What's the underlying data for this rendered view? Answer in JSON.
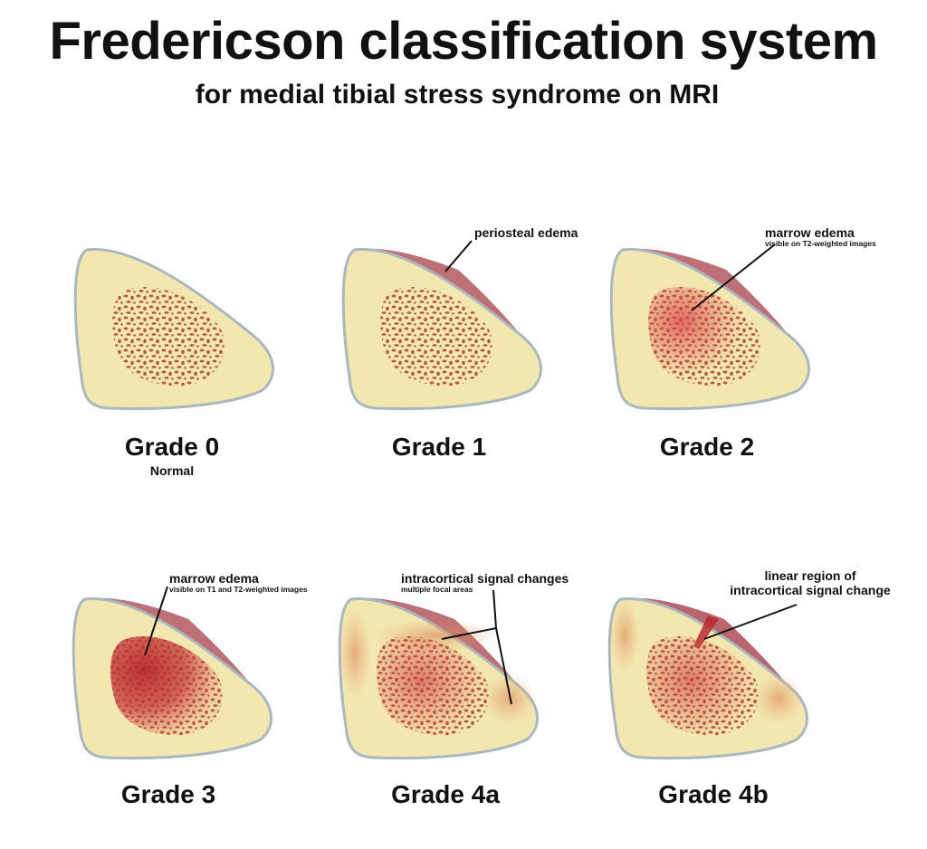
{
  "title": "Fredericson classification system",
  "subtitle": "for medial tibial stress syndrome on MRI",
  "colors": {
    "bone_fill": "#f3e7b0",
    "bone_outline": "#a9b8bf",
    "marrow_spots": "#b45a3c",
    "edema": "#b8282c",
    "periosteal": "#a8404a"
  },
  "grades": [
    {
      "label": "Grade 0",
      "sublabel": "Normal"
    },
    {
      "label": "Grade 1"
    },
    {
      "label": "Grade 2"
    },
    {
      "label": "Grade 3"
    },
    {
      "label": "Grade 4a"
    },
    {
      "label": "Grade 4b"
    }
  ],
  "annotations": {
    "g1": {
      "main": "periosteal edema"
    },
    "g2": {
      "main": "marrow edema",
      "detail": "visible on T2-weighted images"
    },
    "g3": {
      "main": "marrow edema",
      "detail": "visible on T1 and T2-weighted images"
    },
    "g4a": {
      "main": "intracortical signal changes",
      "detail": "multiple focal areas"
    },
    "g4b": {
      "line1": "linear region of",
      "line2": "intracortical signal change"
    }
  }
}
